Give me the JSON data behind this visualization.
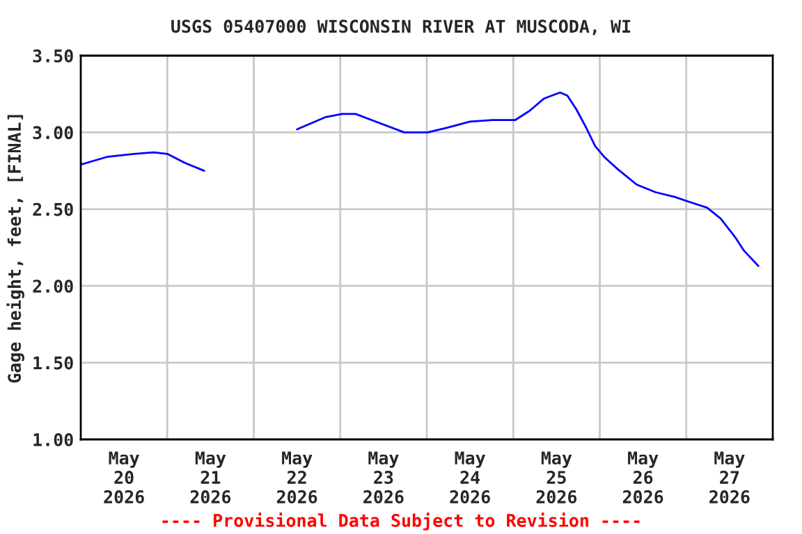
{
  "chart_data": {
    "type": "line",
    "title": "USGS 05407000 WISCONSIN RIVER AT MUSCODA, WI",
    "ylabel": "Gage height, feet, [FINAL]",
    "annotations": [
      "---- Provisional Data Subject to Revision ----"
    ],
    "x": [
      "2026-05-20T00:00",
      "2026-05-20T07:15",
      "2026-05-20T14:45",
      "2026-05-20T20:15",
      "2026-05-21T00:00",
      "2026-05-21T05:00",
      "2026-05-21T10:15",
      "2026-05-22T00:00",
      "2026-05-22T12:00",
      "2026-05-22T20:00",
      "2026-05-23T00:30",
      "2026-05-23T04:15",
      "2026-05-23T08:45",
      "2026-05-23T17:45",
      "2026-05-23T21:00",
      "2026-05-24T00:15",
      "2026-05-24T05:30",
      "2026-05-24T12:00",
      "2026-05-24T18:15",
      "2026-05-25T00:30",
      "2026-05-25T04:30",
      "2026-05-25T08:30",
      "2026-05-25T13:00",
      "2026-05-25T15:00",
      "2026-05-25T17:30",
      "2026-05-25T20:15",
      "2026-05-25T22:45",
      "2026-05-26T01:15",
      "2026-05-26T05:00",
      "2026-05-26T10:15",
      "2026-05-26T15:30",
      "2026-05-26T20:45",
      "2026-05-27T00:30",
      "2026-05-27T05:45",
      "2026-05-27T09:30",
      "2026-05-27T13:30",
      "2026-05-27T16:00",
      "2026-05-27T20:00"
    ],
    "series": [
      {
        "color": "#0000ff",
        "values": [
          2.79,
          2.84,
          2.86,
          2.87,
          2.86,
          2.8,
          2.75,
          null,
          3.02,
          3.1,
          3.12,
          3.12,
          3.08,
          3.0,
          3.0,
          3.0,
          3.03,
          3.07,
          3.08,
          3.08,
          3.14,
          3.22,
          3.26,
          3.24,
          3.15,
          3.03,
          2.91,
          2.84,
          2.76,
          2.66,
          2.61,
          2.58,
          2.55,
          2.51,
          2.44,
          2.32,
          2.23,
          2.13
        ]
      }
    ],
    "xlim": [
      "2026-05-20T00:00",
      "2026-05-28T00:00"
    ],
    "xticks": [
      {
        "value": "2026-05-20T12:00",
        "label": "May\n20\n2026"
      },
      {
        "value": "2026-05-21T12:00",
        "label": "May\n21\n2026"
      },
      {
        "value": "2026-05-22T12:00",
        "label": "May\n22\n2026"
      },
      {
        "value": "2026-05-23T12:00",
        "label": "May\n23\n2026"
      },
      {
        "value": "2026-05-24T12:00",
        "label": "May\n24\n2026"
      },
      {
        "value": "2026-05-25T12:00",
        "label": "May\n25\n2026"
      },
      {
        "value": "2026-05-26T12:00",
        "label": "May\n26\n2026"
      },
      {
        "value": "2026-05-27T12:00",
        "label": "May\n27\n2026"
      },
      {
        "value": "2026-05-21T00:00",
        "label": null
      },
      {
        "value": "2026-05-22T00:00",
        "label": null
      },
      {
        "value": "2026-05-23T00:00",
        "label": null
      },
      {
        "value": "2026-05-24T00:00",
        "label": null
      },
      {
        "value": "2026-05-25T00:00",
        "label": null
      },
      {
        "value": "2026-05-26T00:00",
        "label": null
      },
      {
        "value": "2026-05-27T00:00",
        "label": null
      }
    ],
    "ylim": [
      1.0,
      3.5
    ],
    "yticks": [
      {
        "value": 1.0,
        "label": "1.00"
      },
      {
        "value": 1.5,
        "label": "1.50"
      },
      {
        "value": 2.0,
        "label": "2.00"
      },
      {
        "value": 2.5,
        "label": "2.50"
      },
      {
        "value": 3.0,
        "label": "3.00"
      },
      {
        "value": 3.5,
        "label": "3.50"
      }
    ],
    "grid": true,
    "legend": false,
    "marker": "none",
    "line_style": "solid"
  }
}
